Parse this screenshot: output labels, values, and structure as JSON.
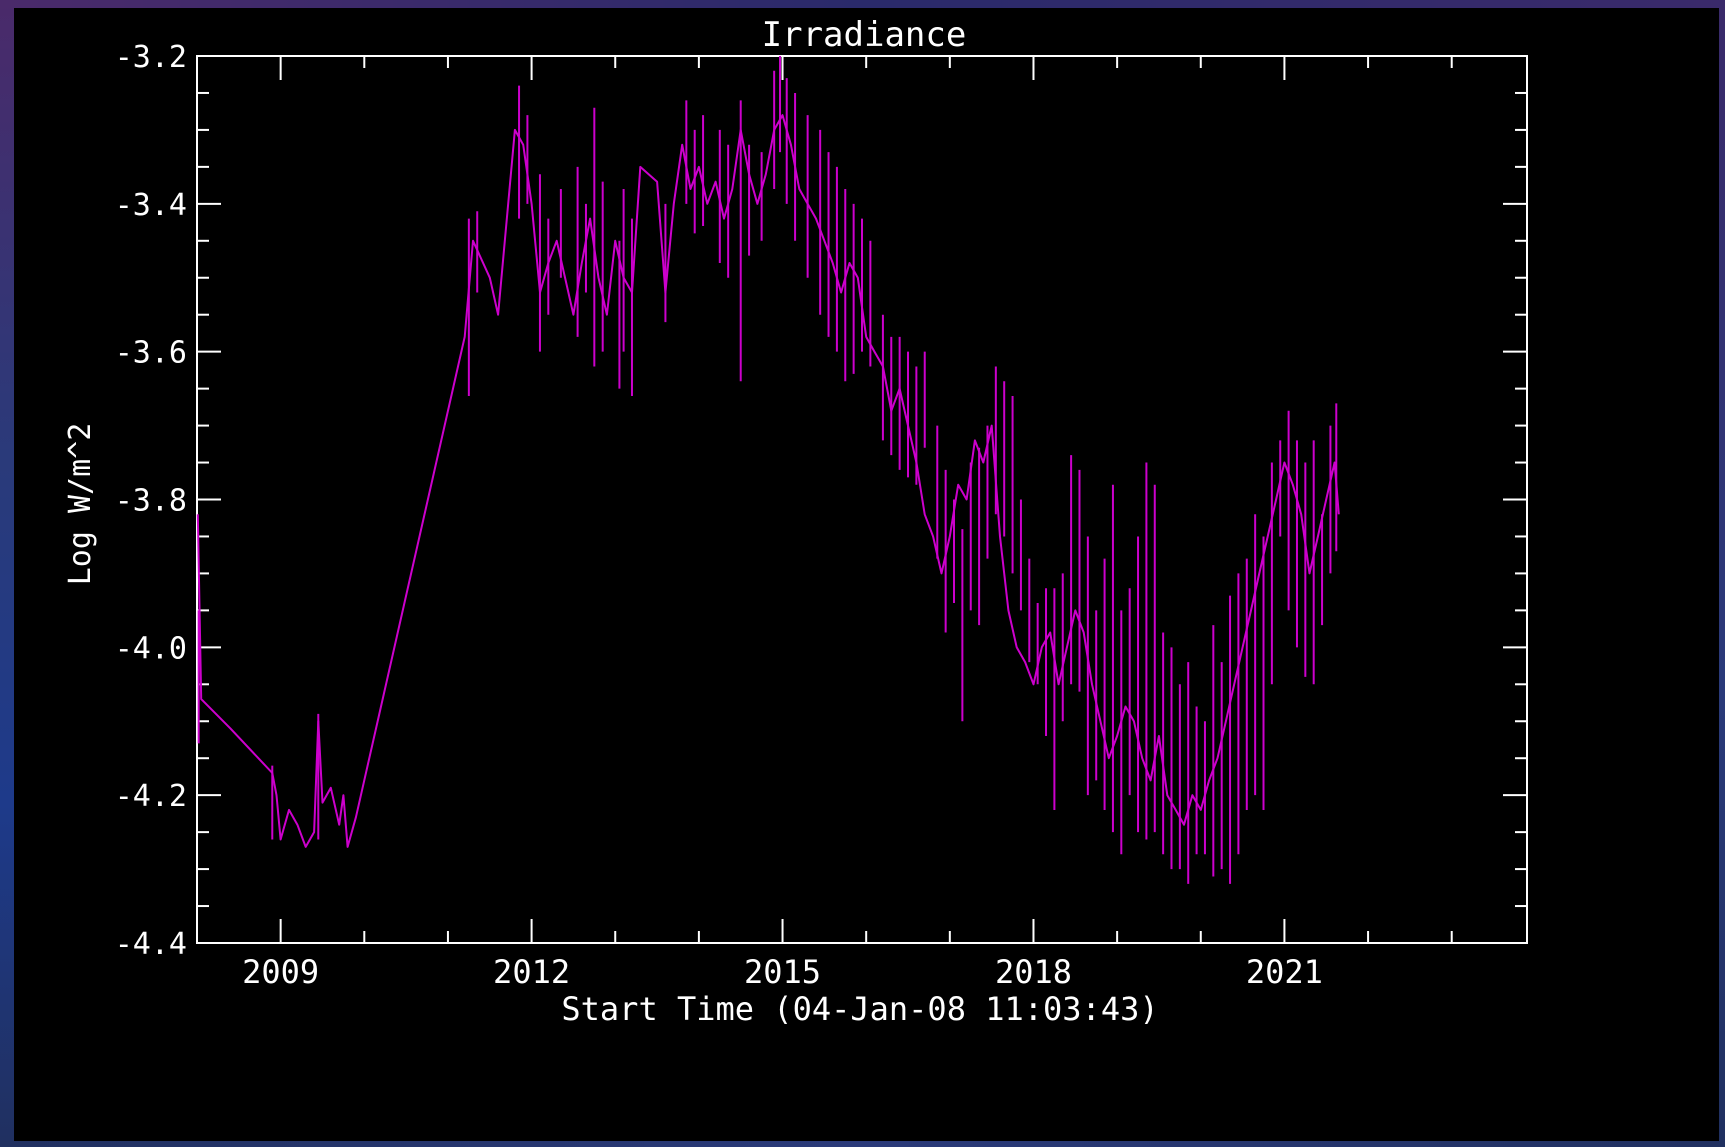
{
  "chart_data": {
    "type": "line",
    "title": "Irradiance",
    "xlabel": "Start Time (04-Jan-08 11:03:43)",
    "ylabel": "Log W/m^2",
    "xlim": [
      2008.0,
      2023.9
    ],
    "ylim": [
      -4.4,
      -3.2
    ],
    "x_ticks": [
      2009,
      2012,
      2015,
      2018,
      2021
    ],
    "x_tick_labels": [
      "2009",
      "2012",
      "2015",
      "2018",
      "2021"
    ],
    "y_ticks": [
      -3.2,
      -3.4,
      -3.6,
      -3.8,
      -4.0,
      -4.2,
      -4.4
    ],
    "y_tick_labels": [
      "-3.2",
      "-3.4",
      "-3.6",
      "-3.8",
      "-4.0",
      "-4.2",
      "-4.4"
    ],
    "grid": false,
    "series": [
      {
        "color": "#cc00cc",
        "x": [
          2008.01,
          2008.05,
          2008.4,
          2008.9,
          2008.95,
          2009.0,
          2009.1,
          2009.2,
          2009.3,
          2009.4,
          2009.45,
          2009.5,
          2009.6,
          2009.7,
          2009.75,
          2009.8,
          2009.9,
          2011.2,
          2011.3,
          2011.5,
          2011.6,
          2011.8,
          2011.9,
          2012.0,
          2012.1,
          2012.2,
          2012.3,
          2012.5,
          2012.6,
          2012.7,
          2012.8,
          2012.9,
          2013.0,
          2013.1,
          2013.2,
          2013.3,
          2013.5,
          2013.6,
          2013.7,
          2013.8,
          2013.9,
          2014.0,
          2014.1,
          2014.2,
          2014.3,
          2014.4,
          2014.5,
          2014.6,
          2014.7,
          2014.8,
          2014.9,
          2015.0,
          2015.1,
          2015.2,
          2015.3,
          2015.4,
          2015.5,
          2015.6,
          2015.7,
          2015.8,
          2015.9,
          2016.0,
          2016.1,
          2016.2,
          2016.3,
          2016.4,
          2016.5,
          2016.6,
          2016.7,
          2016.8,
          2016.9,
          2017.0,
          2017.1,
          2017.2,
          2017.3,
          2017.4,
          2017.5,
          2017.6,
          2017.7,
          2017.8,
          2017.9,
          2018.0,
          2018.1,
          2018.2,
          2018.3,
          2018.4,
          2018.5,
          2018.6,
          2018.7,
          2018.8,
          2018.9,
          2019.0,
          2019.1,
          2019.2,
          2019.3,
          2019.4,
          2019.5,
          2019.6,
          2019.7,
          2019.8,
          2019.9,
          2020.0,
          2020.1,
          2020.2,
          2020.3,
          2020.4,
          2020.5,
          2020.6,
          2020.7,
          2020.8,
          2020.9,
          2021.0,
          2021.1,
          2021.2,
          2021.3,
          2021.4,
          2021.5,
          2021.6,
          2021.65
        ],
        "y": [
          -3.82,
          -4.07,
          -4.11,
          -4.17,
          -4.2,
          -4.26,
          -4.22,
          -4.24,
          -4.27,
          -4.25,
          -4.1,
          -4.21,
          -4.19,
          -4.24,
          -4.2,
          -4.27,
          -4.23,
          -3.58,
          -3.45,
          -3.5,
          -3.55,
          -3.3,
          -3.32,
          -3.4,
          -3.52,
          -3.48,
          -3.45,
          -3.55,
          -3.48,
          -3.42,
          -3.5,
          -3.55,
          -3.45,
          -3.5,
          -3.52,
          -3.35,
          -3.37,
          -3.52,
          -3.4,
          -3.32,
          -3.38,
          -3.35,
          -3.4,
          -3.37,
          -3.42,
          -3.38,
          -3.3,
          -3.36,
          -3.4,
          -3.36,
          -3.3,
          -3.28,
          -3.32,
          -3.38,
          -3.4,
          -3.42,
          -3.45,
          -3.48,
          -3.52,
          -3.48,
          -3.5,
          -3.58,
          -3.6,
          -3.62,
          -3.68,
          -3.65,
          -3.7,
          -3.75,
          -3.82,
          -3.85,
          -3.9,
          -3.85,
          -3.78,
          -3.8,
          -3.72,
          -3.75,
          -3.7,
          -3.85,
          -3.95,
          -4.0,
          -4.02,
          -4.05,
          -4.0,
          -3.98,
          -4.05,
          -4.0,
          -3.95,
          -3.98,
          -4.05,
          -4.1,
          -4.15,
          -4.12,
          -4.08,
          -4.1,
          -4.15,
          -4.18,
          -4.12,
          -4.2,
          -4.22,
          -4.24,
          -4.2,
          -4.22,
          -4.18,
          -4.15,
          -4.1,
          -4.05,
          -4.0,
          -3.95,
          -3.9,
          -3.85,
          -3.8,
          -3.75,
          -3.78,
          -3.82,
          -3.9,
          -3.85,
          -3.8,
          -3.75,
          -3.82
        ],
        "spikes": [
          [
            2008.02,
            -3.95,
            -4.13
          ],
          [
            2008.9,
            -4.16,
            -4.26
          ],
          [
            2009.45,
            -4.09,
            -4.26
          ],
          [
            2011.25,
            -3.42,
            -3.66
          ],
          [
            2011.35,
            -3.41,
            -3.52
          ],
          [
            2011.85,
            -3.24,
            -3.42
          ],
          [
            2011.95,
            -3.28,
            -3.4
          ],
          [
            2012.1,
            -3.36,
            -3.6
          ],
          [
            2012.2,
            -3.42,
            -3.55
          ],
          [
            2012.35,
            -3.38,
            -3.5
          ],
          [
            2012.55,
            -3.35,
            -3.58
          ],
          [
            2012.65,
            -3.4,
            -3.52
          ],
          [
            2012.75,
            -3.27,
            -3.62
          ],
          [
            2012.85,
            -3.37,
            -3.6
          ],
          [
            2013.05,
            -3.45,
            -3.65
          ],
          [
            2013.1,
            -3.38,
            -3.6
          ],
          [
            2013.2,
            -3.42,
            -3.66
          ],
          [
            2013.6,
            -3.4,
            -3.56
          ],
          [
            2013.85,
            -3.26,
            -3.4
          ],
          [
            2013.95,
            -3.3,
            -3.44
          ],
          [
            2014.05,
            -3.28,
            -3.43
          ],
          [
            2014.25,
            -3.3,
            -3.48
          ],
          [
            2014.35,
            -3.32,
            -3.5
          ],
          [
            2014.5,
            -3.26,
            -3.64
          ],
          [
            2014.6,
            -3.32,
            -3.47
          ],
          [
            2014.75,
            -3.33,
            -3.45
          ],
          [
            2014.9,
            -3.22,
            -3.38
          ],
          [
            2014.97,
            -3.2,
            -3.33
          ],
          [
            2015.05,
            -3.23,
            -3.4
          ],
          [
            2015.15,
            -3.25,
            -3.45
          ],
          [
            2015.3,
            -3.28,
            -3.5
          ],
          [
            2015.45,
            -3.3,
            -3.55
          ],
          [
            2015.55,
            -3.33,
            -3.58
          ],
          [
            2015.65,
            -3.35,
            -3.6
          ],
          [
            2015.75,
            -3.38,
            -3.64
          ],
          [
            2015.85,
            -3.4,
            -3.63
          ],
          [
            2015.95,
            -3.42,
            -3.6
          ],
          [
            2016.05,
            -3.45,
            -3.62
          ],
          [
            2016.2,
            -3.55,
            -3.72
          ],
          [
            2016.3,
            -3.58,
            -3.74
          ],
          [
            2016.4,
            -3.58,
            -3.76
          ],
          [
            2016.5,
            -3.6,
            -3.77
          ],
          [
            2016.6,
            -3.62,
            -3.78
          ],
          [
            2016.7,
            -3.6,
            -3.73
          ],
          [
            2016.85,
            -3.7,
            -3.88
          ],
          [
            2016.95,
            -3.76,
            -3.98
          ],
          [
            2017.05,
            -3.8,
            -3.94
          ],
          [
            2017.15,
            -3.84,
            -4.1
          ],
          [
            2017.25,
            -3.75,
            -3.95
          ],
          [
            2017.35,
            -3.73,
            -3.97
          ],
          [
            2017.45,
            -3.7,
            -3.88
          ],
          [
            2017.55,
            -3.62,
            -3.82
          ],
          [
            2017.65,
            -3.64,
            -3.85
          ],
          [
            2017.75,
            -3.66,
            -3.9
          ],
          [
            2017.85,
            -3.8,
            -3.95
          ],
          [
            2017.95,
            -3.88,
            -4.02
          ],
          [
            2018.05,
            -3.94,
            -4.05
          ],
          [
            2018.15,
            -3.92,
            -4.12
          ],
          [
            2018.25,
            -3.92,
            -4.22
          ],
          [
            2018.35,
            -3.9,
            -4.1
          ],
          [
            2018.45,
            -3.74,
            -4.05
          ],
          [
            2018.55,
            -3.76,
            -4.06
          ],
          [
            2018.65,
            -3.85,
            -4.2
          ],
          [
            2018.75,
            -3.95,
            -4.18
          ],
          [
            2018.85,
            -3.88,
            -4.22
          ],
          [
            2018.95,
            -3.78,
            -4.25
          ],
          [
            2019.05,
            -3.95,
            -4.28
          ],
          [
            2019.15,
            -3.92,
            -4.2
          ],
          [
            2019.25,
            -3.85,
            -4.25
          ],
          [
            2019.35,
            -3.75,
            -4.26
          ],
          [
            2019.45,
            -3.78,
            -4.25
          ],
          [
            2019.55,
            -3.98,
            -4.28
          ],
          [
            2019.65,
            -4.0,
            -4.3
          ],
          [
            2019.75,
            -4.05,
            -4.3
          ],
          [
            2019.85,
            -4.02,
            -4.32
          ],
          [
            2019.95,
            -4.08,
            -4.28
          ],
          [
            2020.05,
            -4.1,
            -4.28
          ],
          [
            2020.15,
            -3.97,
            -4.31
          ],
          [
            2020.25,
            -4.02,
            -4.3
          ],
          [
            2020.35,
            -3.93,
            -4.32
          ],
          [
            2020.45,
            -3.9,
            -4.28
          ],
          [
            2020.55,
            -3.88,
            -4.22
          ],
          [
            2020.65,
            -3.82,
            -4.2
          ],
          [
            2020.75,
            -3.85,
            -4.22
          ],
          [
            2020.85,
            -3.75,
            -4.05
          ],
          [
            2020.95,
            -3.72,
            -3.85
          ],
          [
            2021.05,
            -3.68,
            -3.95
          ],
          [
            2021.15,
            -3.72,
            -4.0
          ],
          [
            2021.25,
            -3.75,
            -4.04
          ],
          [
            2021.35,
            -3.72,
            -4.05
          ],
          [
            2021.45,
            -3.82,
            -3.97
          ],
          [
            2021.55,
            -3.7,
            -3.9
          ],
          [
            2021.62,
            -3.67,
            -3.87
          ]
        ]
      }
    ]
  }
}
